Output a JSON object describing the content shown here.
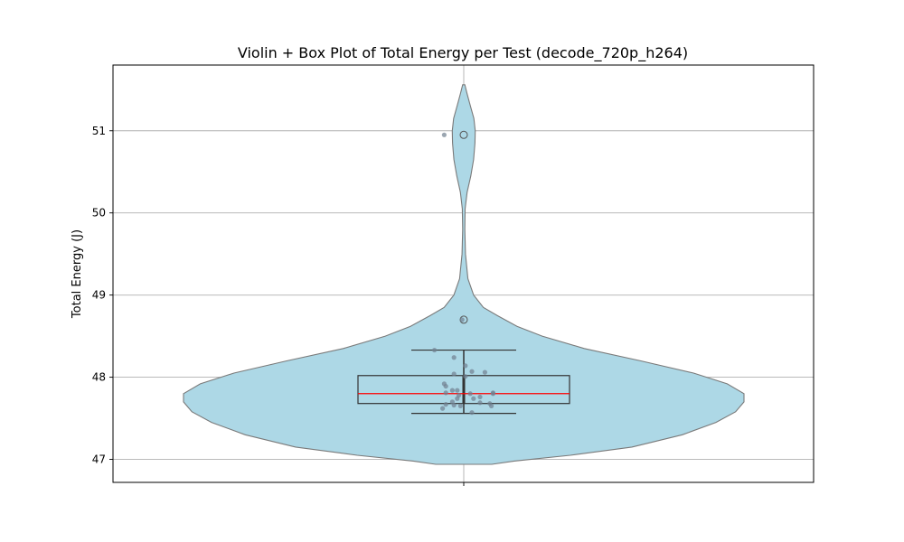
{
  "chart_data": {
    "type": "violin",
    "title": "Violin + Box Plot of Total Energy per Test (decode_720p_h264)",
    "xlabel": "",
    "ylabel": "Total Energy (J)",
    "ylim": [
      46.72,
      51.8
    ],
    "yticks": [
      "47",
      "48",
      "49",
      "50",
      "51"
    ],
    "grid": true,
    "legend": "none",
    "colors": {
      "violin_fill": "#add8e6",
      "violin_edge": "#7a7a7a",
      "box_edge": "#333333",
      "median_line": "#ff0000",
      "points": "#708090",
      "grid": "#b0b0b0"
    },
    "box": {
      "q1": 47.68,
      "median": 47.8,
      "q3": 48.02,
      "whisker_low": 47.56,
      "whisker_high": 48.33
    },
    "outliers": [
      50.95,
      48.7
    ],
    "points": [
      {
        "y": 50.95,
        "jitter": -0.12
      },
      {
        "y": 48.7,
        "jitter": -0.01
      },
      {
        "y": 48.33,
        "jitter": -0.18
      },
      {
        "y": 48.24,
        "jitter": -0.06
      },
      {
        "y": 48.14,
        "jitter": 0.01
      },
      {
        "y": 48.07,
        "jitter": 0.05
      },
      {
        "y": 48.06,
        "jitter": 0.13
      },
      {
        "y": 48.04,
        "jitter": -0.06
      },
      {
        "y": 48.01,
        "jitter": 0.01
      },
      {
        "y": 47.92,
        "jitter": -0.12
      },
      {
        "y": 47.89,
        "jitter": -0.11
      },
      {
        "y": 47.84,
        "jitter": -0.07
      },
      {
        "y": 47.84,
        "jitter": -0.04
      },
      {
        "y": 47.81,
        "jitter": -0.11
      },
      {
        "y": 47.8,
        "jitter": 0.04
      },
      {
        "y": 47.81,
        "jitter": 0.18
      },
      {
        "y": 47.8,
        "jitter": 0.18
      },
      {
        "y": 47.78,
        "jitter": -0.03
      },
      {
        "y": 47.76,
        "jitter": 0.1
      },
      {
        "y": 47.74,
        "jitter": -0.04
      },
      {
        "y": 47.74,
        "jitter": 0.06
      },
      {
        "y": 47.7,
        "jitter": -0.07
      },
      {
        "y": 47.69,
        "jitter": 0.1
      },
      {
        "y": 47.68,
        "jitter": 0.16
      },
      {
        "y": 47.67,
        "jitter": -0.11
      },
      {
        "y": 47.66,
        "jitter": -0.06
      },
      {
        "y": 47.65,
        "jitter": -0.02
      },
      {
        "y": 47.65,
        "jitter": 0.17
      },
      {
        "y": 47.62,
        "jitter": -0.13
      },
      {
        "y": 47.57,
        "jitter": 0.05
      }
    ],
    "density": [
      [
        46.94,
        0.1
      ],
      [
        46.98,
        0.18
      ],
      [
        47.05,
        0.38
      ],
      [
        47.15,
        0.6
      ],
      [
        47.3,
        0.78
      ],
      [
        47.45,
        0.9
      ],
      [
        47.58,
        0.97
      ],
      [
        47.7,
        1.0
      ],
      [
        47.8,
        1.0
      ],
      [
        47.92,
        0.94
      ],
      [
        48.05,
        0.82
      ],
      [
        48.2,
        0.63
      ],
      [
        48.35,
        0.43
      ],
      [
        48.5,
        0.28
      ],
      [
        48.62,
        0.19
      ],
      [
        48.75,
        0.12
      ],
      [
        48.85,
        0.07
      ],
      [
        49.0,
        0.035
      ],
      [
        49.2,
        0.015
      ],
      [
        49.5,
        0.006
      ],
      [
        49.8,
        0.004
      ],
      [
        50.05,
        0.005
      ],
      [
        50.25,
        0.012
      ],
      [
        50.45,
        0.025
      ],
      [
        50.65,
        0.035
      ],
      [
        50.85,
        0.04
      ],
      [
        51.0,
        0.041
      ],
      [
        51.15,
        0.036
      ],
      [
        51.3,
        0.024
      ],
      [
        51.45,
        0.012
      ],
      [
        51.56,
        0.004
      ]
    ]
  }
}
